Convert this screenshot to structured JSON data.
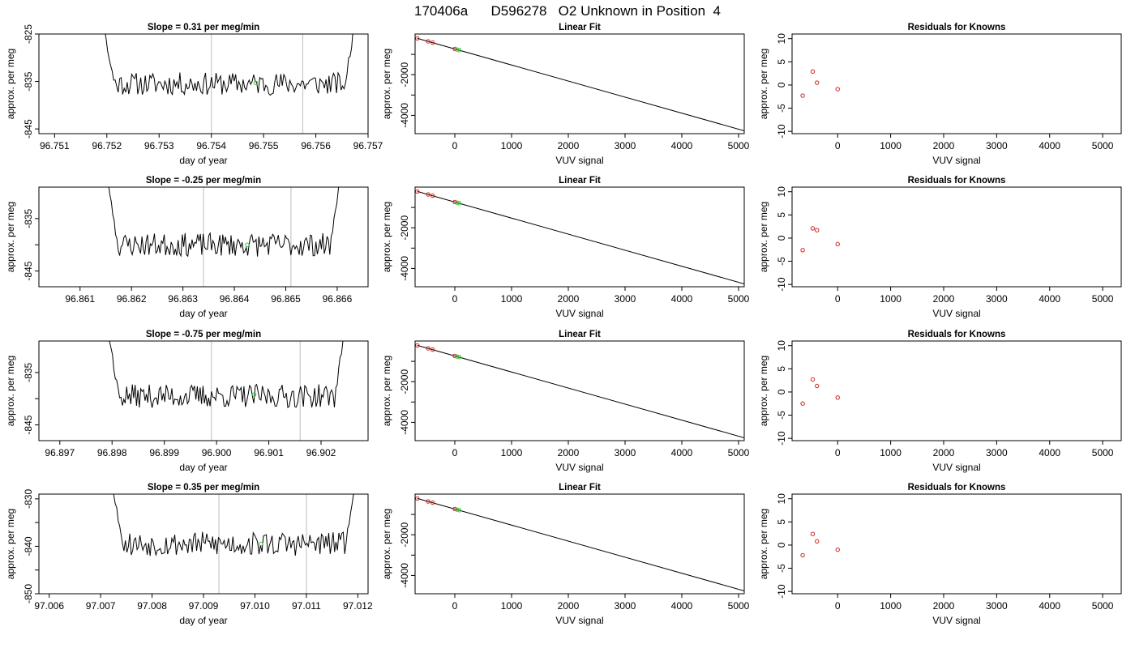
{
  "page": {
    "title": "170406a      D596278   O2 Unknown in Position  4"
  },
  "colors": {
    "trace": "#000000",
    "grid_vertical": "#c8c8c8",
    "known_points": "#cc2222",
    "unknown_points": "#33cc33",
    "fit_line": "#000000"
  },
  "chart_data": [
    {
      "panel": "drift",
      "type": "line",
      "title": "Slope =  0.31  per meg/min",
      "xlabel": "day of year",
      "ylabel": "approx. per meg",
      "xlim": [
        96.7507,
        96.757
      ],
      "ylim": [
        -846,
        -825
      ],
      "xticks": [
        96.751,
        96.752,
        96.753,
        96.754,
        96.755,
        96.756,
        96.757
      ],
      "xtick_labels": [
        "96.751",
        "96.752",
        "96.753",
        "96.754",
        "96.755",
        "96.756",
        "96.757"
      ],
      "yticks": [
        -845,
        -835,
        -825
      ],
      "ytick_labels": [
        "-845",
        "-835",
        "-825"
      ],
      "x_start": 96.7519,
      "x_end": 96.7568,
      "baseline": -835.5,
      "noise": 1.5,
      "seed": 11,
      "vlines": [
        96.754,
        96.75575
      ],
      "marker": {
        "x": 96.75485,
        "y": -835.3
      }
    },
    {
      "panel": "fit",
      "type": "scatter",
      "title": "Linear Fit",
      "xlabel": "VUV signal",
      "ylabel": "approx. per meg",
      "xlim": [
        -700,
        5100
      ],
      "ylim": [
        -4900,
        0
      ],
      "xticks": [
        0,
        1000,
        2000,
        3000,
        4000,
        5000
      ],
      "xtick_labels": [
        "0",
        "1000",
        "2000",
        "3000",
        "4000",
        "5000"
      ],
      "yticks": [
        -4000,
        -3000,
        -2000,
        -1000
      ],
      "ytick_labels": [
        "-4000",
        "",
        "-2000",
        ""
      ],
      "line": [
        [
          -660,
          -215
        ],
        [
          5100,
          -4760
        ]
      ],
      "knowns": [
        [
          -660,
          -215
        ],
        [
          -470,
          -362
        ],
        [
          -390,
          -423
        ],
        [
          0,
          -735
        ]
      ],
      "unknowns": [
        [
          40,
          -765
        ],
        [
          80,
          -792
        ]
      ]
    },
    {
      "panel": "residuals",
      "type": "scatter",
      "title": "Residuals for Knowns",
      "xlabel": "VUV signal",
      "ylabel": "approx. per meg",
      "xlim": [
        -860,
        5350
      ],
      "ylim": [
        -10.5,
        11
      ],
      "xticks": [
        0,
        1000,
        2000,
        3000,
        4000,
        5000
      ],
      "xtick_labels": [
        "0",
        "1000",
        "2000",
        "3000",
        "4000",
        "5000"
      ],
      "yticks": [
        -10,
        -5,
        0,
        5,
        10
      ],
      "ytick_labels": [
        "-10",
        "-5",
        "0",
        "5",
        "10"
      ],
      "points": [
        [
          -660,
          -2.3
        ],
        [
          -470,
          2.9
        ],
        [
          -390,
          0.5
        ],
        [
          0,
          -0.9
        ]
      ]
    },
    {
      "panel": "drift",
      "type": "line",
      "title": "Slope =  -0.25  per meg/min",
      "xlabel": "day of year",
      "ylabel": "approx. per meg",
      "xlim": [
        96.8602,
        96.8666
      ],
      "ylim": [
        -848,
        -829
      ],
      "xticks": [
        96.861,
        96.862,
        96.863,
        96.864,
        96.865,
        96.866
      ],
      "xtick_labels": [
        "96.861",
        "96.862",
        "96.863",
        "96.864",
        "96.865",
        "96.866"
      ],
      "yticks": [
        -845,
        -840,
        -835
      ],
      "ytick_labels": [
        "-845",
        "",
        "-835"
      ],
      "x_start": 96.8615,
      "x_end": 96.8661,
      "baseline": -840.0,
      "noise": 1.4,
      "seed": 23,
      "vlines": [
        96.8634,
        96.8651
      ],
      "marker": {
        "x": 96.86425,
        "y": -840.0
      }
    },
    {
      "panel": "fit",
      "type": "scatter",
      "title": "Linear Fit",
      "xlabel": "VUV signal",
      "ylabel": "approx. per meg",
      "xlim": [
        -700,
        5100
      ],
      "ylim": [
        -4900,
        0
      ],
      "xticks": [
        0,
        1000,
        2000,
        3000,
        4000,
        5000
      ],
      "xtick_labels": [
        "0",
        "1000",
        "2000",
        "3000",
        "4000",
        "5000"
      ],
      "yticks": [
        -4000,
        -3000,
        -2000,
        -1000
      ],
      "ytick_labels": [
        "-4000",
        "",
        "-2000",
        ""
      ],
      "line": [
        [
          -660,
          -215
        ],
        [
          5100,
          -4760
        ]
      ],
      "knowns": [
        [
          -660,
          -215
        ],
        [
          -470,
          -362
        ],
        [
          -390,
          -423
        ],
        [
          0,
          -735
        ]
      ],
      "unknowns": [
        [
          40,
          -765
        ],
        [
          80,
          -792
        ]
      ]
    },
    {
      "panel": "residuals",
      "type": "scatter",
      "title": "Residuals for Knowns",
      "xlabel": "VUV signal",
      "ylabel": "approx. per meg",
      "xlim": [
        -860,
        5350
      ],
      "ylim": [
        -10.5,
        11
      ],
      "xticks": [
        0,
        1000,
        2000,
        3000,
        4000,
        5000
      ],
      "xtick_labels": [
        "0",
        "1000",
        "2000",
        "3000",
        "4000",
        "5000"
      ],
      "yticks": [
        -10,
        -5,
        0,
        5,
        10
      ],
      "ytick_labels": [
        "-10",
        "-5",
        "0",
        "5",
        "10"
      ],
      "points": [
        [
          -660,
          -2.6
        ],
        [
          -470,
          2.1
        ],
        [
          -390,
          1.7
        ],
        [
          0,
          -1.3
        ]
      ]
    },
    {
      "panel": "drift",
      "type": "line",
      "title": "Slope =  -0.75  per meg/min",
      "xlabel": "day of year",
      "ylabel": "approx. per meg",
      "xlim": [
        96.8966,
        96.9029
      ],
      "ylim": [
        -848,
        -829
      ],
      "xticks": [
        96.897,
        96.898,
        96.899,
        96.9,
        96.901,
        96.902
      ],
      "xtick_labels": [
        "96.897",
        "96.898",
        "96.899",
        "96.900",
        "96.901",
        "96.902"
      ],
      "yticks": [
        -845,
        -840,
        -835
      ],
      "ytick_labels": [
        "-845",
        "",
        "-835"
      ],
      "x_start": 96.8979,
      "x_end": 96.9025,
      "baseline": -839.5,
      "noise": 1.4,
      "seed": 37,
      "vlines": [
        96.8999,
        96.9016
      ],
      "marker": {
        "x": 96.90072,
        "y": -839.2
      }
    },
    {
      "panel": "fit",
      "type": "scatter",
      "title": "Linear Fit",
      "xlabel": "VUV signal",
      "ylabel": "approx. per meg",
      "xlim": [
        -700,
        5100
      ],
      "ylim": [
        -4900,
        0
      ],
      "xticks": [
        0,
        1000,
        2000,
        3000,
        4000,
        5000
      ],
      "xtick_labels": [
        "0",
        "1000",
        "2000",
        "3000",
        "4000",
        "5000"
      ],
      "yticks": [
        -4000,
        -3000,
        -2000,
        -1000
      ],
      "ytick_labels": [
        "-4000",
        "",
        "-2000",
        ""
      ],
      "line": [
        [
          -660,
          -215
        ],
        [
          5100,
          -4760
        ]
      ],
      "knowns": [
        [
          -660,
          -215
        ],
        [
          -470,
          -362
        ],
        [
          -390,
          -423
        ],
        [
          0,
          -735
        ]
      ],
      "unknowns": [
        [
          40,
          -765
        ],
        [
          80,
          -792
        ]
      ]
    },
    {
      "panel": "residuals",
      "type": "scatter",
      "title": "Residuals for Knowns",
      "xlabel": "VUV signal",
      "ylabel": "approx. per meg",
      "xlim": [
        -860,
        5350
      ],
      "ylim": [
        -10.5,
        11
      ],
      "xticks": [
        0,
        1000,
        2000,
        3000,
        4000,
        5000
      ],
      "xtick_labels": [
        "0",
        "1000",
        "2000",
        "3000",
        "4000",
        "5000"
      ],
      "yticks": [
        -10,
        -5,
        0,
        5,
        10
      ],
      "ytick_labels": [
        "-10",
        "-5",
        "0",
        "5",
        "10"
      ],
      "points": [
        [
          -660,
          -2.5
        ],
        [
          -470,
          2.7
        ],
        [
          -390,
          1.3
        ],
        [
          0,
          -1.2
        ]
      ]
    },
    {
      "panel": "drift",
      "type": "line",
      "title": "Slope =  0.35  per meg/min",
      "xlabel": "day of year",
      "ylabel": "approx. per meg",
      "xlim": [
        97.0058,
        97.0122
      ],
      "ylim": [
        -850,
        -829
      ],
      "xticks": [
        97.006,
        97.007,
        97.008,
        97.009,
        97.01,
        97.011,
        97.012
      ],
      "xtick_labels": [
        "97.006",
        "97.007",
        "97.008",
        "97.009",
        "97.010",
        "97.011",
        "97.012"
      ],
      "yticks": [
        -850,
        -845,
        -840,
        -835,
        -830
      ],
      "ytick_labels": [
        "-850",
        "",
        "-840",
        "",
        "-830"
      ],
      "x_start": 97.0072,
      "x_end": 97.012,
      "baseline": -839.5,
      "noise": 1.6,
      "seed": 53,
      "vlines": [
        97.0093,
        97.011
      ],
      "marker": {
        "x": 97.01012,
        "y": -839.5
      }
    },
    {
      "panel": "fit",
      "type": "scatter",
      "title": "Linear Fit",
      "xlabel": "VUV signal",
      "ylabel": "approx. per meg",
      "xlim": [
        -700,
        5100
      ],
      "ylim": [
        -4900,
        0
      ],
      "xticks": [
        0,
        1000,
        2000,
        3000,
        4000,
        5000
      ],
      "xtick_labels": [
        "0",
        "1000",
        "2000",
        "3000",
        "4000",
        "5000"
      ],
      "yticks": [
        -4000,
        -3000,
        -2000,
        -1000
      ],
      "ytick_labels": [
        "-4000",
        "",
        "-2000",
        ""
      ],
      "line": [
        [
          -660,
          -215
        ],
        [
          5100,
          -4760
        ]
      ],
      "knowns": [
        [
          -660,
          -215
        ],
        [
          -470,
          -362
        ],
        [
          -390,
          -423
        ],
        [
          0,
          -735
        ]
      ],
      "unknowns": [
        [
          40,
          -765
        ],
        [
          80,
          -792
        ]
      ]
    },
    {
      "panel": "residuals",
      "type": "scatter",
      "title": "Residuals for Knowns",
      "xlabel": "VUV signal",
      "ylabel": "approx. per meg",
      "xlim": [
        -860,
        5350
      ],
      "ylim": [
        -10.5,
        11
      ],
      "xticks": [
        0,
        1000,
        2000,
        3000,
        4000,
        5000
      ],
      "xtick_labels": [
        "0",
        "1000",
        "2000",
        "3000",
        "4000",
        "5000"
      ],
      "yticks": [
        -10,
        -5,
        0,
        5,
        10
      ],
      "ytick_labels": [
        "-10",
        "-5",
        "0",
        "5",
        "10"
      ],
      "points": [
        [
          -660,
          -2.2
        ],
        [
          -470,
          2.4
        ],
        [
          -390,
          0.8
        ],
        [
          0,
          -1.0
        ]
      ]
    }
  ]
}
